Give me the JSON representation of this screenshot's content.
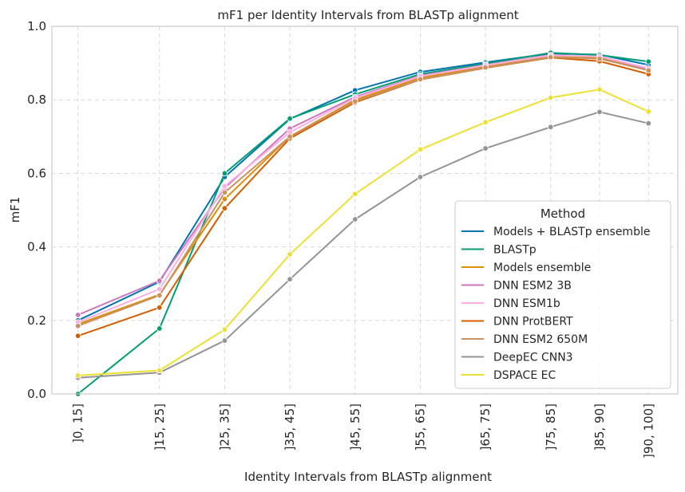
{
  "chart_data": {
    "type": "line",
    "title": "mF1 per Identity Intervals from BLASTp alignment",
    "xlabel": "Identity Intervals from BLASTp alignment",
    "ylabel": "mF1",
    "x": [
      7.5,
      20,
      30,
      40,
      50,
      60,
      70,
      80,
      87.5,
      95
    ],
    "categories": [
      "]0, 15]",
      "]15, 25]",
      "]25, 35]",
      "]35, 45]",
      "]45, 55]",
      "]55, 65]",
      "]65, 75]",
      "]75, 85]",
      "]85, 90]",
      "]90, 100]"
    ],
    "ylim": [
      0,
      1.0
    ],
    "yticks": [
      "0.0",
      "0.2",
      "0.4",
      "0.6",
      "0.8",
      "1.0"
    ],
    "grid": true,
    "legend": {
      "title": "Method",
      "position": "center-right"
    },
    "series": [
      {
        "name": "Models + BLASTp ensemble",
        "color": "#0173b2",
        "values": [
          0.2,
          0.305,
          0.59,
          0.748,
          0.826,
          0.876,
          0.902,
          0.926,
          0.923,
          0.895
        ]
      },
      {
        "name": "BLASTp",
        "color": "#029e73",
        "values": [
          0.0,
          0.178,
          0.6,
          0.749,
          0.815,
          0.87,
          0.898,
          0.928,
          0.922,
          0.904
        ]
      },
      {
        "name": "Models ensemble",
        "color": "#de8f05",
        "values": [
          0.19,
          0.27,
          0.53,
          0.7,
          0.8,
          0.86,
          0.89,
          0.92,
          0.915,
          0.88
        ]
      },
      {
        "name": "DNN ESM2 3B",
        "color": "#cc78bc",
        "values": [
          0.215,
          0.308,
          0.56,
          0.722,
          0.808,
          0.866,
          0.895,
          0.922,
          0.918,
          0.884
        ]
      },
      {
        "name": "DNN ESM1b",
        "color": "#fbafe4",
        "values": [
          0.195,
          0.285,
          0.565,
          0.712,
          0.805,
          0.864,
          0.894,
          0.921,
          0.918,
          0.886
        ]
      },
      {
        "name": "DNN ProtBERT",
        "color": "#d55e00",
        "values": [
          0.158,
          0.235,
          0.505,
          0.695,
          0.793,
          0.855,
          0.887,
          0.915,
          0.905,
          0.87
        ]
      },
      {
        "name": "DNN ESM2 650M",
        "color": "#ca9161",
        "values": [
          0.185,
          0.268,
          0.548,
          0.7,
          0.796,
          0.856,
          0.888,
          0.916,
          0.912,
          0.88
        ]
      },
      {
        "name": "DeepEC CNN3",
        "color": "#949494",
        "values": [
          0.044,
          0.058,
          0.145,
          0.312,
          0.475,
          0.59,
          0.668,
          0.726,
          0.767,
          0.736
        ]
      },
      {
        "name": "DSPACE EC",
        "color": "#ece133",
        "values": [
          0.05,
          0.064,
          0.175,
          0.38,
          0.544,
          0.665,
          0.739,
          0.806,
          0.828,
          0.768
        ]
      }
    ]
  }
}
